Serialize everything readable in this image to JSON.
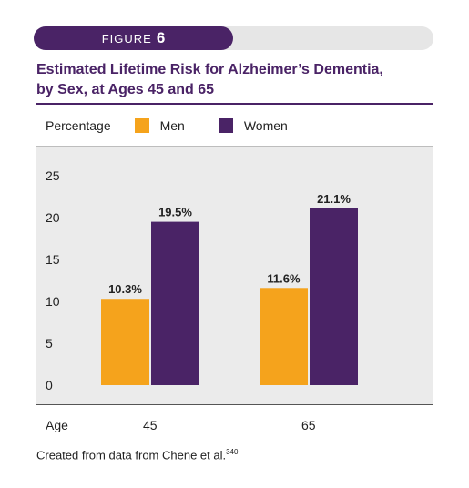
{
  "figure": {
    "word": "FIGURE",
    "number": "6"
  },
  "title_line1": "Estimated Lifetime Risk for Alzheimer’s Dementia,",
  "title_line2": "by Sex, at Ages 45 and 65",
  "legend": {
    "title": "Percentage",
    "men": "Men",
    "women": "Women"
  },
  "colors": {
    "men": "#f5a31c",
    "women": "#4a2366",
    "accent": "#4a2366"
  },
  "source": {
    "text": "Created from data from Chene et al.",
    "ref": "340"
  },
  "chart_data": {
    "type": "bar",
    "title": "Estimated Lifetime Risk for Alzheimer’s Dementia, by Sex, at Ages 45 and 65",
    "xlabel": "Age",
    "ylabel": "Percentage",
    "categories": [
      "45",
      "65"
    ],
    "series": [
      {
        "name": "Men",
        "values": [
          10.3,
          11.6
        ],
        "labels": [
          "10.3%",
          "11.6%"
        ],
        "color": "#f5a31c"
      },
      {
        "name": "Women",
        "values": [
          19.5,
          21.1
        ],
        "labels": [
          "19.5%",
          "21.1%"
        ],
        "color": "#4a2366"
      }
    ],
    "ylim": [
      0,
      25
    ],
    "yticks": [
      "0",
      "5",
      "10",
      "15",
      "20",
      "25"
    ],
    "grid": false,
    "legend_position": "top-left"
  }
}
